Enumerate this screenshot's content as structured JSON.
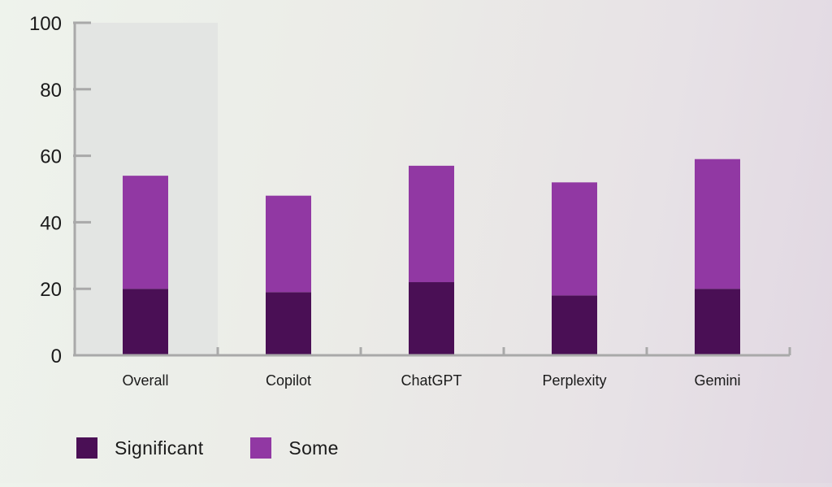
{
  "chart_data": {
    "type": "bar",
    "stacked": true,
    "title": "",
    "xlabel": "",
    "ylabel": "",
    "categories": [
      "Overall",
      "Copilot",
      "ChatGPT",
      "Perplexity",
      "Gemini"
    ],
    "series": [
      {
        "name": "Significant",
        "color": "#4a0f55",
        "values": [
          20,
          19,
          22,
          18,
          20
        ]
      },
      {
        "name": "Some",
        "color": "#9138a3",
        "values": [
          34,
          29,
          35,
          34,
          39
        ]
      }
    ],
    "ylim": [
      0,
      100
    ],
    "yticks": [
      0,
      20,
      40,
      60,
      80,
      100
    ],
    "highlighted_category": "Overall",
    "highlight_color": "#e3e5e3",
    "axis_color": "#a9a9a9",
    "grid": false,
    "legend_position": "bottom-left"
  }
}
